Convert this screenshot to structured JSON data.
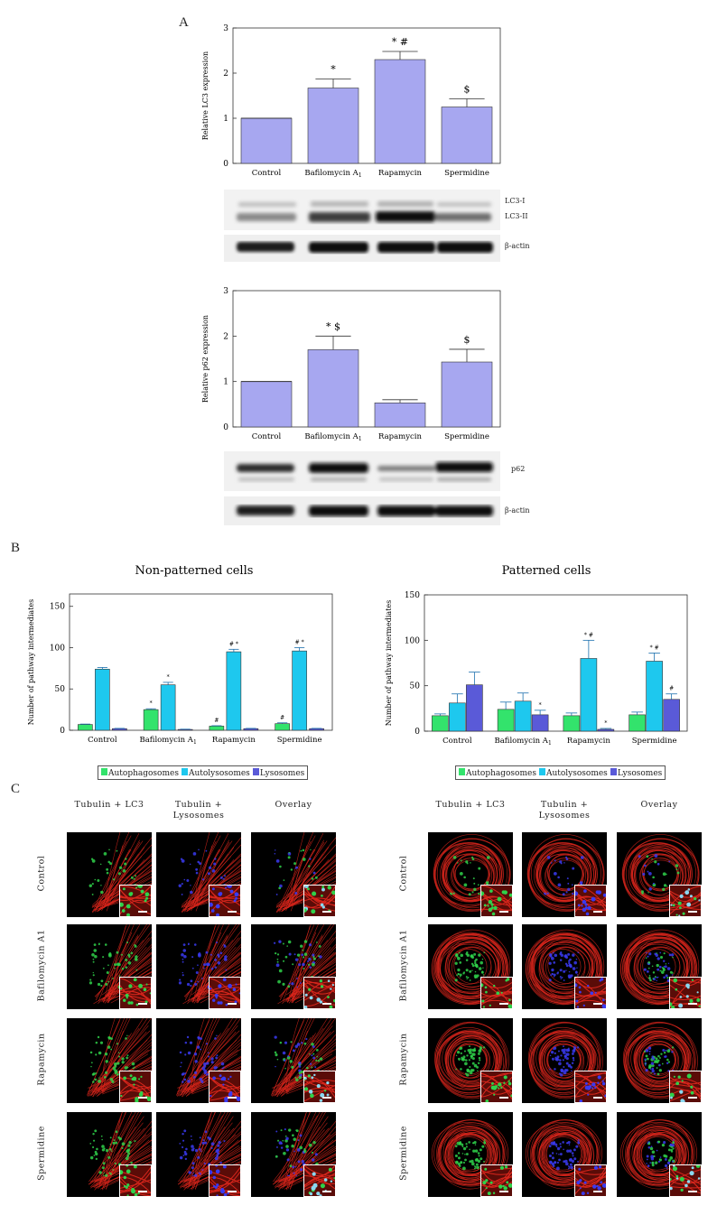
{
  "panels": {
    "a": "A",
    "b": "B",
    "c": "C"
  },
  "colors": {
    "bar_purple": "#a7a7f0",
    "autophagosomes": "#33e36c",
    "autolysosomes": "#1ec8ee",
    "lysosomes": "#5a5ad8",
    "tubulin": "#d9261c",
    "lc3": "#2fd14a",
    "lysosome_stain": "#3a3af0"
  },
  "blots": {
    "lc3": {
      "band1": "LC3-I",
      "band2": "LC3-II",
      "loading": "β-actin"
    },
    "p62": {
      "band1": "p62",
      "loading": "β-actin"
    }
  },
  "microscopy": {
    "left_columns": [
      "Tubulin + LC3",
      "Tubulin + Lysosomes",
      "Overlay"
    ],
    "right_columns": [
      "Tubulin + LC3",
      "Tubulin + Lysosomes",
      "Overlay"
    ],
    "rows": [
      "Control",
      "Bafilomycin A1",
      "Rapamycin",
      "Spermidine"
    ]
  },
  "chart_data": [
    {
      "type": "bar",
      "categories": [
        "Control",
        "Bafilomycin A1",
        "Rapamycin",
        "Spermidine"
      ],
      "values": [
        1.0,
        1.67,
        2.3,
        1.25
      ],
      "errors": [
        0.0,
        0.2,
        0.18,
        0.18
      ],
      "annotations": [
        "",
        "*",
        "*  #",
        "$"
      ],
      "ylabel": "Relative LC3 expression",
      "ylim": [
        0,
        3
      ],
      "yticks": [
        0,
        1,
        2,
        3
      ],
      "color": "#a7a7f0"
    },
    {
      "type": "bar",
      "categories": [
        "Control",
        "Bafilomycin A1",
        "Rapamycin",
        "Spermidine"
      ],
      "values": [
        1.0,
        1.7,
        0.53,
        1.43
      ],
      "errors": [
        0.0,
        0.3,
        0.07,
        0.28
      ],
      "annotations": [
        "",
        "*  $",
        "",
        "$"
      ],
      "ylabel": "Relative p62 expression",
      "ylim": [
        0,
        3
      ],
      "yticks": [
        0,
        1,
        2,
        3
      ],
      "color": "#a7a7f0"
    },
    {
      "type": "bar",
      "title": "Non-patterned cells",
      "categories": [
        "Control",
        "Bafilomycin A1",
        "Rapamycin",
        "Spermidine"
      ],
      "series": [
        {
          "name": "Autophagosomes",
          "values": [
            7,
            25,
            5,
            8
          ],
          "errors": [
            0.5,
            1,
            0.5,
            1
          ],
          "annotations": [
            "",
            "*",
            "#",
            "#"
          ]
        },
        {
          "name": "Autolysosomes",
          "values": [
            74,
            55,
            95,
            96
          ],
          "errors": [
            2,
            3,
            3,
            4
          ],
          "annotations": [
            "",
            "*",
            "# *",
            "# *"
          ]
        },
        {
          "name": "Lysosomes",
          "values": [
            2,
            1,
            2,
            2
          ],
          "errors": [
            0.3,
            0.3,
            0.3,
            0.3
          ],
          "annotations": [
            "",
            "",
            "",
            ""
          ]
        }
      ],
      "ylabel": "Number of pathway intermediates",
      "ylim": [
        0,
        165
      ],
      "yticks": [
        0,
        50,
        100,
        150
      ],
      "legend": "bottom"
    },
    {
      "type": "bar",
      "title": "Patterned cells",
      "categories": [
        "Control",
        "Bafilomycin A1",
        "Rapamycin",
        "Spermidine"
      ],
      "series": [
        {
          "name": "Autophagosomes",
          "values": [
            17,
            24,
            17,
            18
          ],
          "errors": [
            2,
            8,
            3,
            3
          ],
          "annotations": [
            "",
            "",
            "",
            ""
          ]
        },
        {
          "name": "Autolysosomes",
          "values": [
            31,
            33,
            80,
            77
          ],
          "errors": [
            10,
            9,
            20,
            9
          ],
          "annotations": [
            "",
            "",
            "* #",
            "* #"
          ]
        },
        {
          "name": "Lysosomes",
          "values": [
            51,
            18,
            2,
            35
          ],
          "errors": [
            14,
            5,
            1,
            6
          ],
          "annotations": [
            "",
            "*",
            "*",
            "#"
          ]
        }
      ],
      "ylabel": "Number of pathway intermediates",
      "ylim": [
        0,
        150
      ],
      "yticks": [
        0,
        50,
        100,
        150
      ],
      "legend": "bottom"
    }
  ]
}
